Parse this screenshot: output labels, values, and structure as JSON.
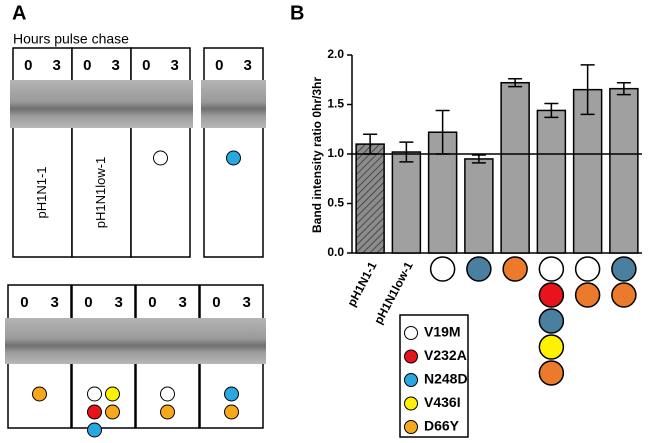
{
  "panel_a": {
    "label": "A",
    "caption": "Hours pulse chase",
    "top": [
      {
        "lanes": [
          "0",
          "3"
        ],
        "label": "pH1N1-1"
      },
      {
        "lanes": [
          "0",
          "3"
        ],
        "label": "pH1N1low-1"
      },
      {
        "lanes": [
          "0",
          "3"
        ],
        "mutations": [
          "V19M"
        ]
      },
      {
        "lanes": [
          "0",
          "3"
        ],
        "mutations": [
          "N248D"
        ]
      }
    ],
    "bottom": [
      {
        "lanes": [
          "0",
          "3"
        ],
        "mutations": [
          "D66Y"
        ]
      },
      {
        "lanes": [
          "0",
          "3"
        ],
        "mutations": [
          "V19M",
          "V436I",
          "V232A",
          "D66Y",
          "N248D"
        ]
      },
      {
        "lanes": [
          "0",
          "3"
        ],
        "mutations": [
          "V19M",
          "D66Y"
        ]
      },
      {
        "lanes": [
          "0",
          "3"
        ],
        "mutations": [
          "N248D",
          "D66Y"
        ]
      }
    ]
  },
  "mutations": [
    {
      "name": "V19M",
      "color": "#ffffff",
      "chart_color": "#ffffff"
    },
    {
      "name": "V232A",
      "color": "#e8141b",
      "chart_color": "#e8141b"
    },
    {
      "name": "N248D",
      "color": "#29a8e0",
      "chart_color": "#4a7fa0"
    },
    {
      "name": "V436I",
      "color": "#fff200",
      "chart_color": "#fff200"
    },
    {
      "name": "D66Y",
      "color": "#f5a81c",
      "chart_color": "#ec7a2c"
    }
  ],
  "chart_data": {
    "type": "bar",
    "panel_label": "B",
    "ylabel": "Band intensity ratio 0hr/3hr",
    "categories": [
      "pH1N1-1",
      "pH1N1low-1",
      null,
      null,
      null,
      null,
      null,
      null
    ],
    "values": [
      1.1,
      1.02,
      1.22,
      0.95,
      1.72,
      1.44,
      1.65,
      1.66
    ],
    "errors": [
      0.1,
      0.1,
      0.22,
      0.04,
      0.04,
      0.07,
      0.25,
      0.06
    ],
    "bar_styles": [
      "hatched",
      "solid",
      "solid",
      "solid",
      "solid",
      "solid",
      "solid",
      "solid"
    ],
    "bar_mutations": [
      [],
      [],
      [
        "V19M"
      ],
      [
        "N248D"
      ],
      [
        "D66Y"
      ],
      [
        "V19M",
        "V232A",
        "N248D",
        "V436I",
        "D66Y"
      ],
      [
        "V19M",
        "D66Y"
      ],
      [
        "N248D",
        "D66Y"
      ]
    ],
    "color": "#a0a0a0",
    "reference_line": 1.0,
    "ylim": [
      0,
      2.0
    ],
    "yticks": [
      {
        "value": 0,
        "label": "0.0"
      },
      {
        "value": 0.5,
        "label": "0.5"
      },
      {
        "value": 1.0,
        "label": "1.0"
      },
      {
        "value": 1.5,
        "label": "1.5"
      },
      {
        "value": 2.0,
        "label": "2.0"
      }
    ]
  }
}
